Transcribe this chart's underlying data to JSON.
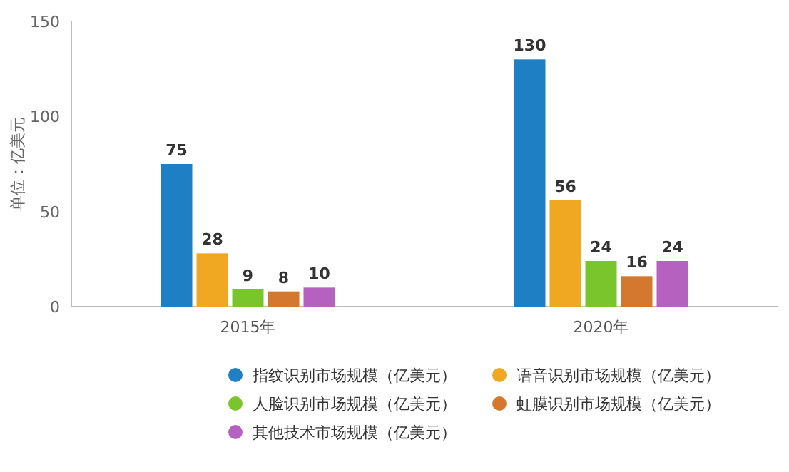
{
  "chart_data": {
    "type": "bar",
    "ylabel": "单位：亿美元",
    "categories": [
      "2015年",
      "2020年"
    ],
    "series": [
      {
        "name": "指纹识别市场规模（亿美元）",
        "color": "#1f7fc4",
        "values": [
          75,
          130
        ]
      },
      {
        "name": "语音识别市场规模（亿美元）",
        "color": "#f0a823",
        "values": [
          28,
          56
        ]
      },
      {
        "name": "人脸识别市场规模（亿美元）",
        "color": "#7ac52c",
        "values": [
          9,
          24
        ]
      },
      {
        "name": "虹膜识别市场规模（亿美元）",
        "color": "#d3782e",
        "values": [
          8,
          16
        ]
      },
      {
        "name": "其他技术市场规模（亿美元）",
        "color": "#b561c0",
        "values": [
          10,
          24
        ]
      }
    ],
    "ylim": [
      0,
      150
    ],
    "yticks": [
      0,
      50,
      100,
      150
    ],
    "data_labels": true,
    "legend": "bottom"
  }
}
